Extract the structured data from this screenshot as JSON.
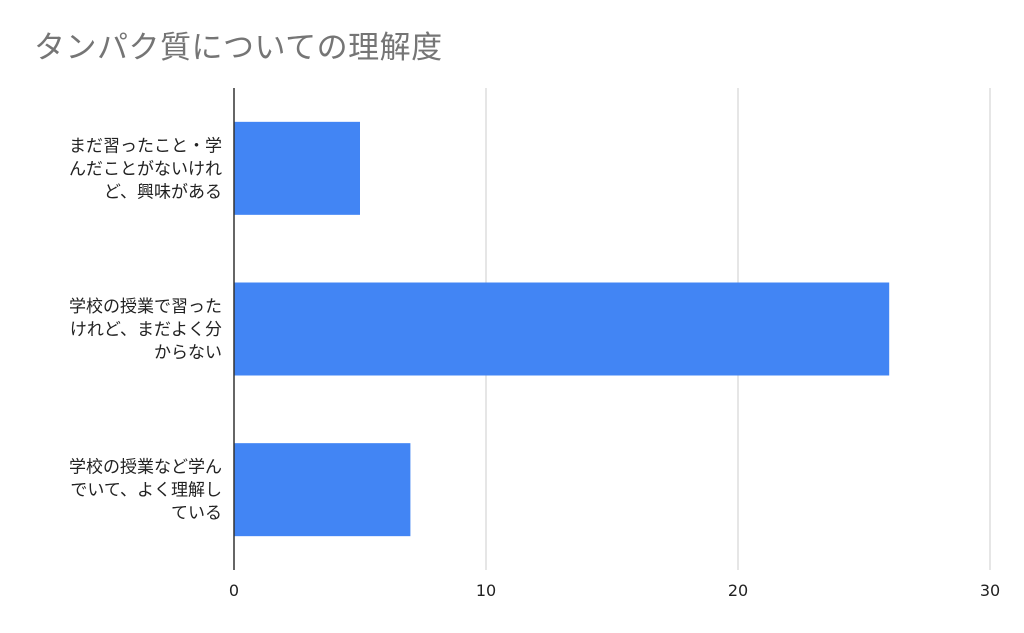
{
  "chart_data": {
    "type": "bar",
    "orientation": "horizontal",
    "title": "タンパク質についての理解度",
    "categories": [
      [
        "まだ習ったこと・学",
        "んだことがないけれ",
        "ど、興味がある"
      ],
      [
        "学校の授業で習った",
        "けれど、まだよく分",
        "からない"
      ],
      [
        "学校の授業など学ん",
        "でいて、よく理解し",
        "ている"
      ]
    ],
    "values": [
      5,
      26,
      7
    ],
    "xlim": [
      0,
      30
    ],
    "xticks": [
      "0",
      "10",
      "20",
      "30"
    ],
    "grid": true,
    "bar_color": "#4285f4",
    "grid_color": "#cccccc",
    "axis_color": "#333333"
  }
}
